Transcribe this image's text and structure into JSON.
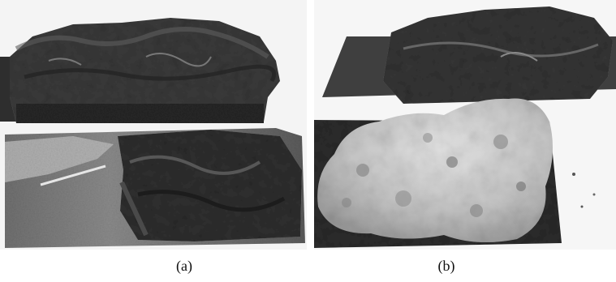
{
  "figure": {
    "panels": [
      {
        "id": "a",
        "label": "(a)",
        "content": "photo-grayscale",
        "objects": [
          "charred-block",
          "scorched-plate-residue"
        ]
      },
      {
        "id": "b",
        "label": "(b)",
        "content": "photo-grayscale",
        "objects": [
          "charred-block",
          "foamed-char-on-plate"
        ]
      }
    ]
  }
}
